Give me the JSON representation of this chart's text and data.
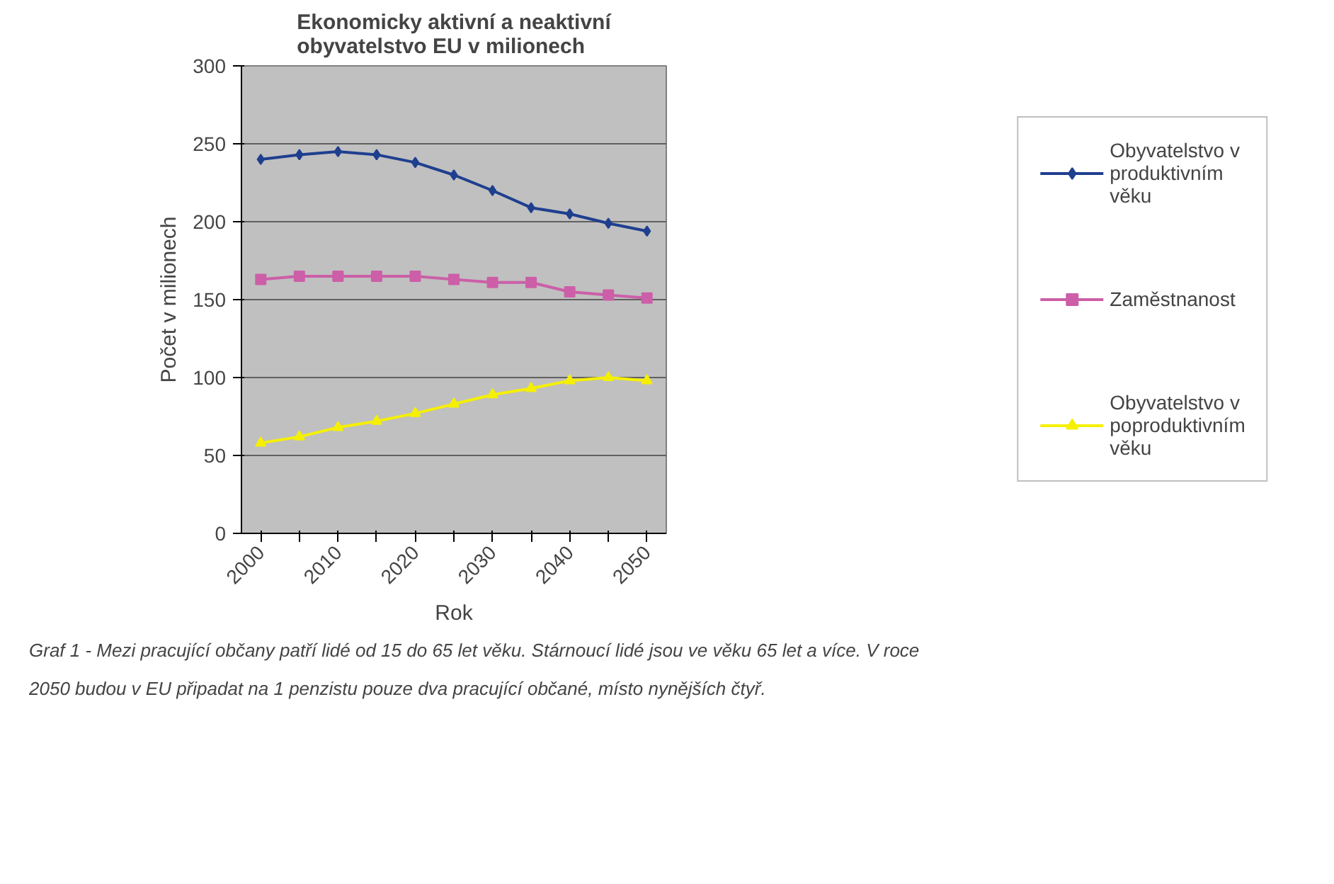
{
  "chart_data": {
    "type": "line",
    "title": "Ekonomicky aktivní a neaktivní\nobyvatelstvo EU v milionech",
    "xlabel": "Rok",
    "ylabel": "Počet v milionech",
    "categories": [
      "2000",
      null,
      "2010",
      null,
      "2020",
      null,
      "2030",
      null,
      "2040",
      null,
      "2050"
    ],
    "series": [
      {
        "name": "Obyvatelstvo v produktivním věku",
        "color": "#1f3f8f",
        "marker": "diamond",
        "values": [
          240,
          243,
          245,
          243,
          238,
          230,
          220,
          209,
          205,
          199,
          194
        ]
      },
      {
        "name": "Zaměstnanost",
        "color": "#cc5fa8",
        "marker": "square",
        "values": [
          163,
          165,
          165,
          165,
          165,
          163,
          161,
          161,
          155,
          153,
          151
        ]
      },
      {
        "name": "Obyvatelstvo v poproduktivním věku",
        "color": "#f5f000",
        "marker": "triangle",
        "values": [
          58,
          62,
          68,
          72,
          77,
          83,
          89,
          93,
          98,
          100,
          98
        ]
      }
    ],
    "ylim": [
      0,
      300
    ],
    "yticks": [
      0,
      50,
      100,
      150,
      200,
      250,
      300
    ],
    "grid": "y",
    "legend": "right",
    "annotations": [
      "Graf 1 - Mezi pracující občany patří lidé od 15 do 65 let věku. Stárnoucí lidé jsou ve věku 65 let a více. V roce",
      "2050 budou v EU připadat na 1 penzistu pouze dva pracující občané, místo nynějších čtyř."
    ]
  }
}
